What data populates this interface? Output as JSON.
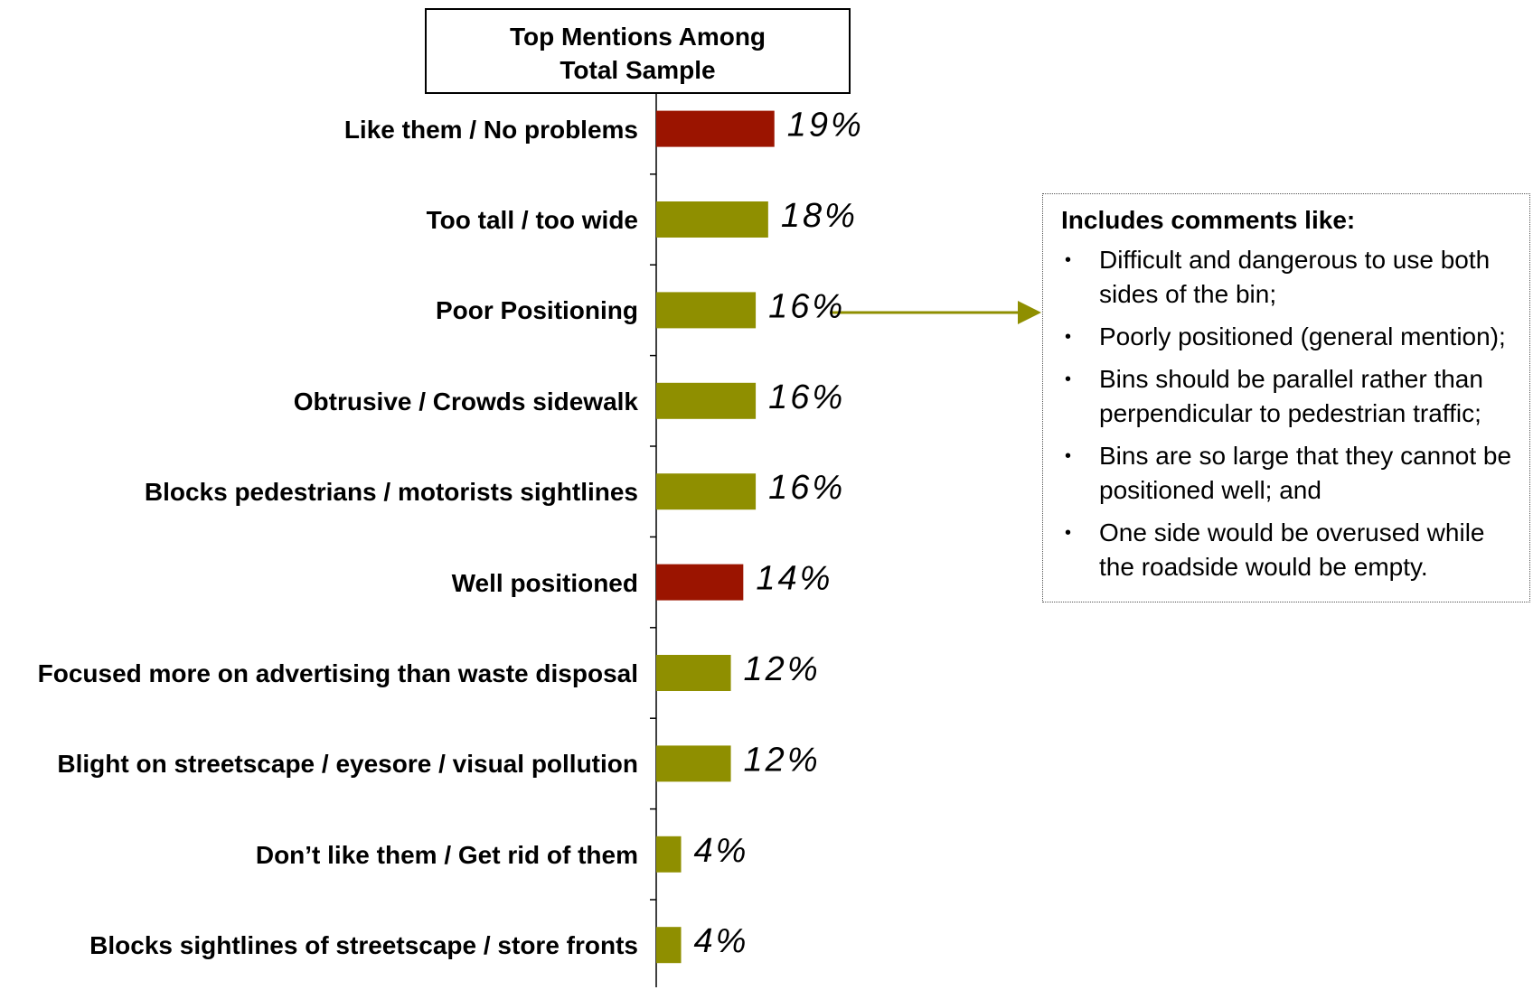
{
  "chart_data": {
    "type": "bar",
    "orientation": "horizontal",
    "title": "Top Mentions Among Total Sample",
    "categories": [
      "Like them / No problems",
      "Too tall / too wide",
      "Poor Positioning",
      "Obtrusive / Crowds sidewalk",
      "Blocks pedestrians / motorists sightlines",
      "Well positioned",
      "Focused more on advertising than waste disposal",
      "Blight on streetscape / eyesore / visual pollution",
      "Don’t like them / Get rid of them",
      "Blocks sightlines of streetscape / store fronts"
    ],
    "values": [
      19,
      18,
      16,
      16,
      16,
      14,
      12,
      12,
      4,
      4
    ],
    "value_labels": [
      "19%",
      "18%",
      "16%",
      "16%",
      "16%",
      "14%",
      "12%",
      "12%",
      "4%",
      "4%"
    ],
    "colors": [
      "#9b1400",
      "#8f8f00",
      "#8f8f00",
      "#8f8f00",
      "#8f8f00",
      "#9b1400",
      "#8f8f00",
      "#8f8f00",
      "#8f8f00",
      "#8f8f00"
    ],
    "annotation": {
      "title": "Includes comments like:",
      "items": [
        "Difficult and dangerous to use both sides of the bin;",
        "Poorly positioned (general mention);",
        "Bins should be parallel rather than perpendicular to pedestrian traffic;",
        "Bins are so large that they cannot be positioned well; and",
        "One side would be overused while the roadside would be empty."
      ]
    }
  }
}
